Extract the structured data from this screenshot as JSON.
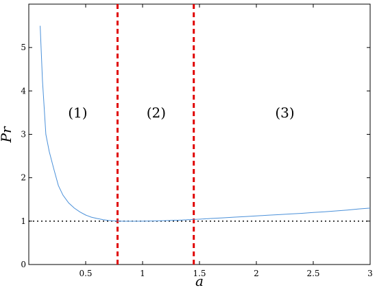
{
  "chart_data": {
    "type": "line",
    "xlabel": "a",
    "ylabel": "Pr",
    "xlim": [
      0,
      3
    ],
    "ylim": [
      0,
      6
    ],
    "grid": false,
    "x_ticks": [
      0.5,
      1,
      1.5,
      2,
      2.5,
      3
    ],
    "x_tick_labels": [
      "0.5",
      "1",
      "1.5",
      "2",
      "2.5",
      "3"
    ],
    "y_ticks": [
      0,
      1,
      2,
      3,
      4,
      5
    ],
    "y_tick_labels": [
      "0",
      "1",
      "2",
      "3",
      "4",
      "5"
    ],
    "series": [
      {
        "color": "#4a90d9",
        "x": [
          0.1,
          0.12,
          0.15,
          0.18,
          0.22,
          0.26,
          0.3,
          0.35,
          0.4,
          0.45,
          0.5,
          0.55,
          0.6,
          0.65,
          0.7,
          0.75,
          0.8,
          0.85,
          0.9,
          0.95,
          1.0,
          1.05,
          1.1,
          1.15,
          1.2,
          1.25,
          1.3,
          1.35,
          1.4,
          1.45,
          1.5,
          1.6,
          1.7,
          1.8,
          1.9,
          2.0,
          2.1,
          2.2,
          2.3,
          2.4,
          2.5,
          2.6,
          2.7,
          2.8,
          2.9,
          3.0
        ],
        "values": [
          5.5,
          4.25,
          3.0,
          2.6,
          2.2,
          1.82,
          1.6,
          1.42,
          1.3,
          1.21,
          1.14,
          1.09,
          1.06,
          1.035,
          1.015,
          1.005,
          1.0,
          0.998,
          0.997,
          0.998,
          1.0,
          1.002,
          1.004,
          1.008,
          1.012,
          1.016,
          1.02,
          1.026,
          1.032,
          1.038,
          1.045,
          1.06,
          1.075,
          1.09,
          1.105,
          1.12,
          1.135,
          1.15,
          1.165,
          1.18,
          1.2,
          1.215,
          1.235,
          1.255,
          1.28,
          1.3
        ]
      }
    ],
    "reference_lines": [
      {
        "orientation": "horizontal",
        "value": 1,
        "style": "dotted",
        "color": "#000000"
      },
      {
        "orientation": "vertical",
        "value": 0.78,
        "style": "dashed",
        "color": "#e00000"
      },
      {
        "orientation": "vertical",
        "value": 1.45,
        "style": "dashed",
        "color": "#e00000"
      }
    ],
    "annotations": [
      {
        "text": "(1)",
        "x": 0.43,
        "y": 3.5
      },
      {
        "text": "(2)",
        "x": 1.12,
        "y": 3.5
      },
      {
        "text": "(3)",
        "x": 2.25,
        "y": 3.5
      }
    ]
  }
}
